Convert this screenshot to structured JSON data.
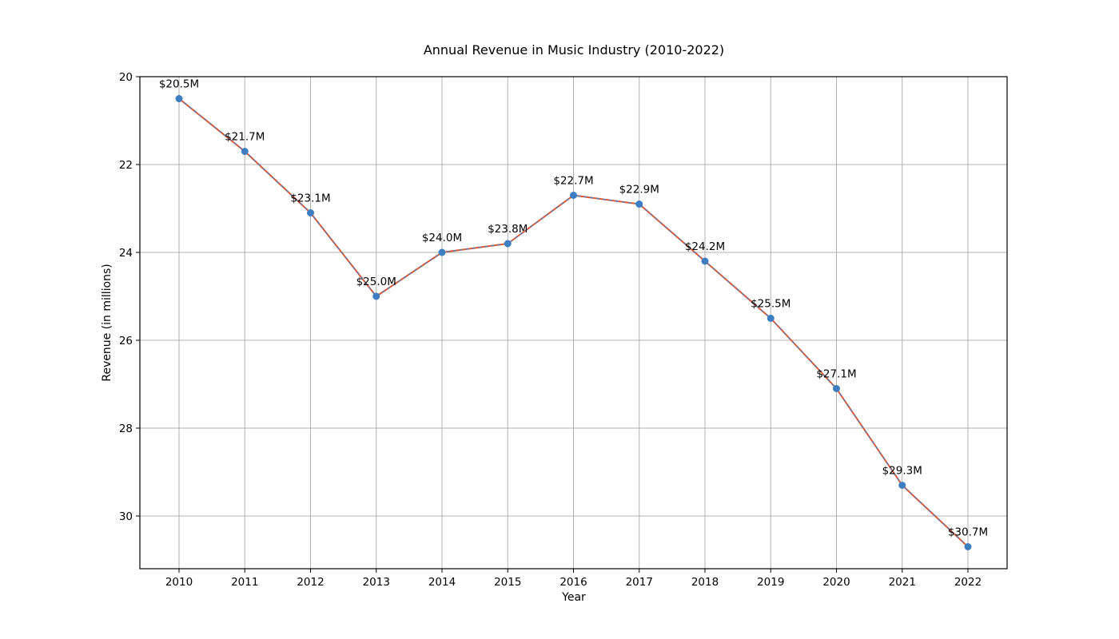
{
  "chart_data": {
    "type": "line",
    "title": "Annual Revenue in Music Industry (2010-2022)",
    "xlabel": "Year",
    "ylabel": "Revenue (in millions)",
    "x": [
      2010,
      2011,
      2012,
      2013,
      2014,
      2015,
      2016,
      2017,
      2018,
      2019,
      2020,
      2021,
      2022
    ],
    "series": [
      {
        "values": [
          20.5,
          21.7,
          23.1,
          25.0,
          24.0,
          23.8,
          22.7,
          22.9,
          24.2,
          25.5,
          27.1,
          29.3,
          30.7
        ],
        "data_labels": [
          "$20.5M",
          "$21.7M",
          "$23.1M",
          "$25.0M",
          "$24.0M",
          "$23.8M",
          "$22.7M",
          "$22.9M",
          "$24.2M",
          "$25.5M",
          "$27.1M",
          "$29.3M",
          "$30.7M"
        ]
      }
    ],
    "ylim": [
      31.2,
      20.0
    ],
    "y_inverted": true,
    "yticks": [
      20,
      22,
      24,
      26,
      28,
      30
    ],
    "grid": true,
    "colors": {
      "line": "#e1572f",
      "line_overlay": "#4a7fbf",
      "marker": "#3d7ec2"
    }
  }
}
